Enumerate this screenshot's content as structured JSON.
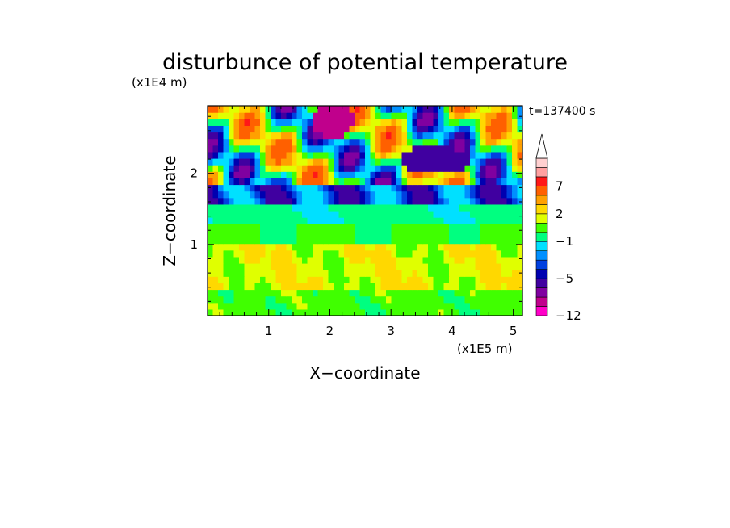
{
  "chart_data": {
    "type": "heatmap",
    "title": "disturbunce of potential temperature",
    "time_label": "t=137400 s",
    "xlabel": "X−coordinate",
    "ylabel": "Z−coordinate",
    "x_unit": "(x1E5 m)",
    "y_unit": "(x1E4 m)",
    "xlim": [
      0,
      5.15
    ],
    "ylim": [
      0,
      2.95
    ],
    "x_ticks": [
      1,
      2,
      3,
      4,
      5
    ],
    "y_ticks": [
      1,
      2
    ],
    "colorbar": {
      "levels": [
        -12,
        -10,
        -8,
        -6,
        -5,
        -4,
        -3,
        -2,
        -1,
        0,
        1,
        2,
        3,
        5,
        7,
        9,
        11
      ],
      "labeled": [
        -12,
        -5,
        -1,
        2,
        7
      ],
      "colors": [
        "#ff00c8",
        "#c0008c",
        "#8000a0",
        "#4000a0",
        "#0000b0",
        "#0040e0",
        "#0090ff",
        "#00e0ff",
        "#00ff80",
        "#40ff00",
        "#e0ff00",
        "#ffd800",
        "#ffa000",
        "#ff6000",
        "#ff1818",
        "#ffa0a0",
        "#ffd0d0"
      ],
      "extend": "max"
    },
    "field_description_rows": [
      {
        "z": [
          0.0,
          0.4
        ],
        "dominant": [
          0,
          1
        ]
      },
      {
        "z": [
          0.4,
          1.0
        ],
        "dominant": [
          1,
          2
        ]
      },
      {
        "z": [
          1.0,
          1.6
        ],
        "dominant": [
          -1,
          0
        ]
      },
      {
        "z": [
          1.6,
          2.95
        ],
        "dominant": [
          -5,
          5
        ]
      }
    ]
  }
}
